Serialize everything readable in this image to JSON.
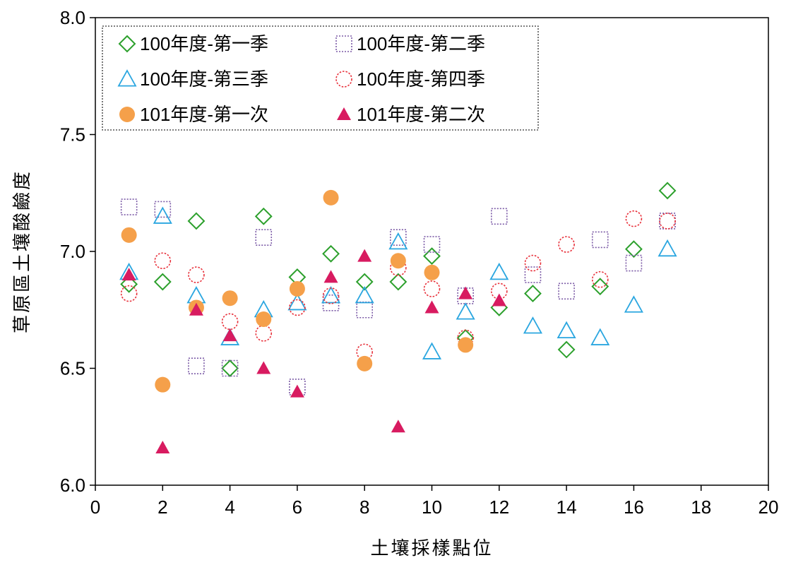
{
  "chart_data": {
    "type": "scatter",
    "title": "",
    "xlabel": "土壤採樣點位",
    "ylabel": "草原區土壤酸鹼度",
    "xlim": [
      0,
      20
    ],
    "ylim": [
      6.0,
      8.0
    ],
    "xticks": [
      "0",
      "2",
      "4",
      "6",
      "8",
      "10",
      "12",
      "14",
      "16",
      "18",
      "20"
    ],
    "yticks": [
      "6.0",
      "6.5",
      "7.0",
      "7.5",
      "8.0"
    ],
    "grid": false,
    "legend_position": "top-left",
    "series": [
      {
        "name": "100年度-第一季",
        "marker": "diamond-open",
        "color": "#2ca02c",
        "points": [
          [
            1,
            6.86
          ],
          [
            2,
            6.87
          ],
          [
            3,
            7.13
          ],
          [
            4,
            6.5
          ],
          [
            5,
            7.15
          ],
          [
            6,
            6.89
          ],
          [
            7,
            6.99
          ],
          [
            8,
            6.87
          ],
          [
            9,
            6.87
          ],
          [
            10,
            6.98
          ],
          [
            11,
            6.63
          ],
          [
            12,
            6.76
          ],
          [
            13,
            6.82
          ],
          [
            14,
            6.58
          ],
          [
            15,
            6.85
          ],
          [
            16,
            7.01
          ],
          [
            17,
            7.26
          ]
        ]
      },
      {
        "name": "100年度-第二季",
        "marker": "square-open-dotted",
        "color": "#7b5aa6",
        "points": [
          [
            1,
            7.19
          ],
          [
            2,
            7.18
          ],
          [
            3,
            6.51
          ],
          [
            4,
            6.5
          ],
          [
            5,
            7.06
          ],
          [
            6,
            6.42
          ],
          [
            7,
            6.78
          ],
          [
            8,
            6.75
          ],
          [
            9,
            7.06
          ],
          [
            10,
            7.03
          ],
          [
            11,
            6.81
          ],
          [
            12,
            7.15
          ],
          [
            13,
            6.9
          ],
          [
            14,
            6.83
          ],
          [
            15,
            7.05
          ],
          [
            16,
            6.95
          ],
          [
            17,
            7.13
          ]
        ]
      },
      {
        "name": "100年度-第三季",
        "marker": "triangle-open",
        "color": "#2aa6e0",
        "points": [
          [
            1,
            6.91
          ],
          [
            2,
            7.15
          ],
          [
            3,
            6.81
          ],
          [
            4,
            6.63
          ],
          [
            5,
            6.75
          ],
          [
            6,
            6.78
          ],
          [
            7,
            6.81
          ],
          [
            8,
            6.81
          ],
          [
            9,
            7.04
          ],
          [
            10,
            6.57
          ],
          [
            11,
            6.74
          ],
          [
            12,
            6.91
          ],
          [
            13,
            6.68
          ],
          [
            14,
            6.66
          ],
          [
            15,
            6.63
          ],
          [
            16,
            6.77
          ],
          [
            17,
            7.01
          ]
        ]
      },
      {
        "name": "100年度-第四季",
        "marker": "circle-open-dotted",
        "color": "#e8313b",
        "points": [
          [
            1,
            6.82
          ],
          [
            2,
            6.96
          ],
          [
            3,
            6.9
          ],
          [
            4,
            6.7
          ],
          [
            5,
            6.65
          ],
          [
            6,
            6.76
          ],
          [
            7,
            6.81
          ],
          [
            8,
            6.57
          ],
          [
            9,
            6.93
          ],
          [
            10,
            6.84
          ],
          [
            11,
            6.63
          ],
          [
            12,
            6.83
          ],
          [
            13,
            6.95
          ],
          [
            14,
            7.03
          ],
          [
            15,
            6.88
          ],
          [
            16,
            7.14
          ],
          [
            17,
            7.13
          ]
        ]
      },
      {
        "name": "101年度-第一次",
        "marker": "circle-filled",
        "color": "#f5a04a",
        "points": [
          [
            1,
            7.07
          ],
          [
            2,
            6.43
          ],
          [
            3,
            6.76
          ],
          [
            4,
            6.8
          ],
          [
            5,
            6.71
          ],
          [
            6,
            6.84
          ],
          [
            7,
            7.23
          ],
          [
            8,
            6.52
          ],
          [
            9,
            6.96
          ],
          [
            10,
            6.91
          ],
          [
            11,
            6.6
          ]
        ]
      },
      {
        "name": "101年度-第二次",
        "marker": "triangle-filled",
        "color": "#d81b60",
        "points": [
          [
            1,
            6.9
          ],
          [
            2,
            6.16
          ],
          [
            3,
            6.75
          ],
          [
            4,
            6.64
          ],
          [
            5,
            6.5
          ],
          [
            6,
            6.4
          ],
          [
            7,
            6.89
          ],
          [
            8,
            6.98
          ],
          [
            9,
            6.25
          ],
          [
            10,
            6.76
          ],
          [
            11,
            6.82
          ],
          [
            12,
            6.79
          ]
        ]
      }
    ]
  }
}
